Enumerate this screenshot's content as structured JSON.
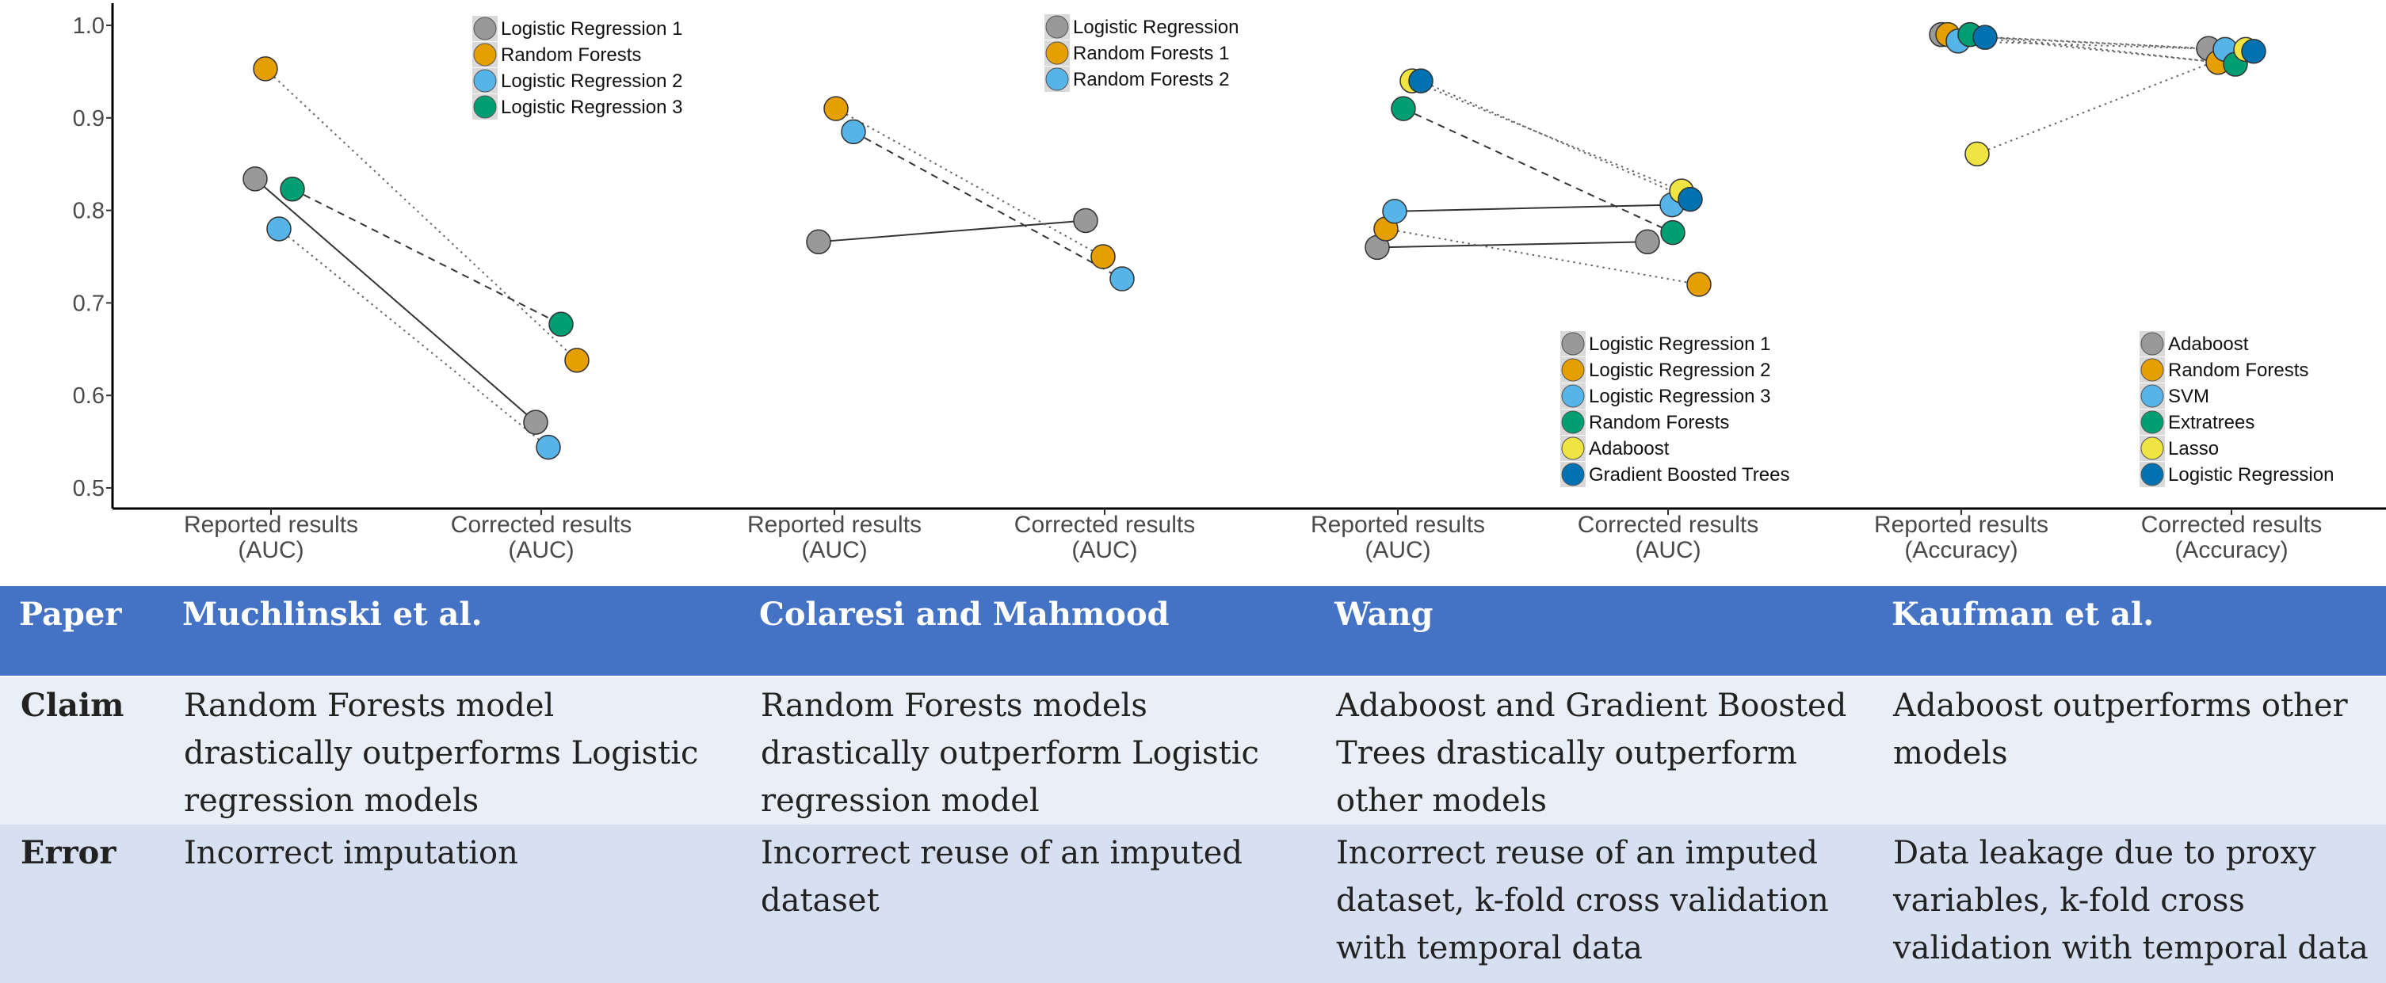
{
  "chart_data": {
    "type": "scatter",
    "y_axis": {
      "ylim": [
        0.48,
        1.02
      ],
      "ticks": [
        {
          "value": 0.5,
          "label": "0.5"
        },
        {
          "value": 0.6,
          "label": "0.6"
        },
        {
          "value": 0.7,
          "label": "0.7"
        },
        {
          "value": 0.8,
          "label": "0.8"
        },
        {
          "value": 0.9,
          "label": "0.9"
        },
        {
          "value": 1.0,
          "label": "1.0"
        }
      ]
    },
    "x_labels": [
      [
        "Reported results",
        "(AUC)"
      ],
      [
        "Corrected results",
        "(AUC)"
      ],
      [
        "Reported results",
        "(AUC)"
      ],
      [
        "Corrected results",
        "(AUC)"
      ],
      [
        "Reported results",
        "(AUC)"
      ],
      [
        "Corrected results",
        "(AUC)"
      ],
      [
        "Reported results",
        "(Accuracy)"
      ],
      [
        "Corrected results",
        "(Accuracy)"
      ]
    ],
    "panels": [
      {
        "paper": "Muchlinski et al.",
        "legend_position": "top-right",
        "series": [
          {
            "name": "Logistic Regression 1",
            "color": "#999999",
            "line": "solid",
            "reported": 0.834,
            "corrected": 0.571
          },
          {
            "name": "Random Forests",
            "color": "#e69f00",
            "line": "dotted",
            "reported": 0.953,
            "corrected": 0.638
          },
          {
            "name": "Logistic Regression 2",
            "color": "#56b4e9",
            "line": "dotted",
            "reported": 0.78,
            "corrected": 0.544
          },
          {
            "name": "Logistic Regression 3",
            "color": "#009e73",
            "line": "dashed",
            "reported": 0.823,
            "corrected": 0.677
          }
        ]
      },
      {
        "paper": "Colaresi and Mahmood",
        "legend_position": "top-right",
        "series": [
          {
            "name": "Logistic Regression",
            "color": "#999999",
            "line": "solid",
            "reported": 0.766,
            "corrected": 0.789
          },
          {
            "name": "Random Forests 1",
            "color": "#e69f00",
            "line": "dotted",
            "reported": 0.91,
            "corrected": 0.75
          },
          {
            "name": "Random Forests 2",
            "color": "#56b4e9",
            "line": "dashed",
            "reported": 0.885,
            "corrected": 0.726
          }
        ]
      },
      {
        "paper": "Wang",
        "legend_position": "bottom-right",
        "series": [
          {
            "name": "Logistic Regression 1",
            "color": "#999999",
            "line": "solid",
            "reported": 0.76,
            "corrected": 0.766
          },
          {
            "name": "Logistic Regression 2",
            "color": "#e69f00",
            "line": "dotted",
            "reported": 0.78,
            "corrected": 0.72
          },
          {
            "name": "Logistic Regression 3",
            "color": "#56b4e9",
            "line": "solid",
            "reported": 0.799,
            "corrected": 0.806
          },
          {
            "name": "Random Forests",
            "color": "#009e73",
            "line": "dashed",
            "reported": 0.91,
            "corrected": 0.776
          },
          {
            "name": "Adaboost",
            "color": "#f0e442",
            "line": "dotted",
            "reported": 0.94,
            "corrected": 0.821
          },
          {
            "name": "Gradient Boosted Trees",
            "color": "#0072b2",
            "line": "dotted",
            "reported": 0.94,
            "corrected": 0.812
          }
        ]
      },
      {
        "paper": "Kaufman et al.",
        "legend_position": "bottom-right",
        "series": [
          {
            "name": "Adaboost",
            "color": "#999999",
            "line": "dotted",
            "reported": 0.99,
            "corrected": 0.975
          },
          {
            "name": "Random Forests",
            "color": "#e69f00",
            "line": "dotted",
            "reported": 0.99,
            "corrected": 0.96
          },
          {
            "name": "SVM",
            "color": "#56b4e9",
            "line": "dotted",
            "reported": 0.983,
            "corrected": 0.974
          },
          {
            "name": "Extratrees",
            "color": "#009e73",
            "line": "dotted",
            "reported": 0.99,
            "corrected": 0.958
          },
          {
            "name": "Lasso",
            "color": "#f0e442",
            "line": "dotted",
            "reported": 0.861,
            "corrected": 0.974
          },
          {
            "name": "Logistic Regression",
            "color": "#0072b2",
            "line": "dotted",
            "reported": 0.987,
            "corrected": 0.972
          }
        ]
      }
    ]
  },
  "table": {
    "header": {
      "label": "Paper",
      "cells": [
        "Muchlinski et al.",
        "Colaresi and Mahmood",
        "Wang",
        "Kaufman et al."
      ]
    },
    "claim": {
      "label": "Claim",
      "cells": [
        "Random Forests model drastically outperforms Logistic regression models",
        "Random Forests models drastically outperform Logistic regression model",
        "Adaboost and Gradient Boosted Trees drastically outperform other models",
        "Adaboost outperforms other models"
      ]
    },
    "error": {
      "label": "Error",
      "cells": [
        "Incorrect imputation",
        "Incorrect reuse of an imputed dataset",
        "Incorrect reuse of an imputed dataset, k-fold cross validation with temporal data",
        "Data leakage due to proxy variables, k-fold cross validation with temporal data"
      ]
    }
  }
}
